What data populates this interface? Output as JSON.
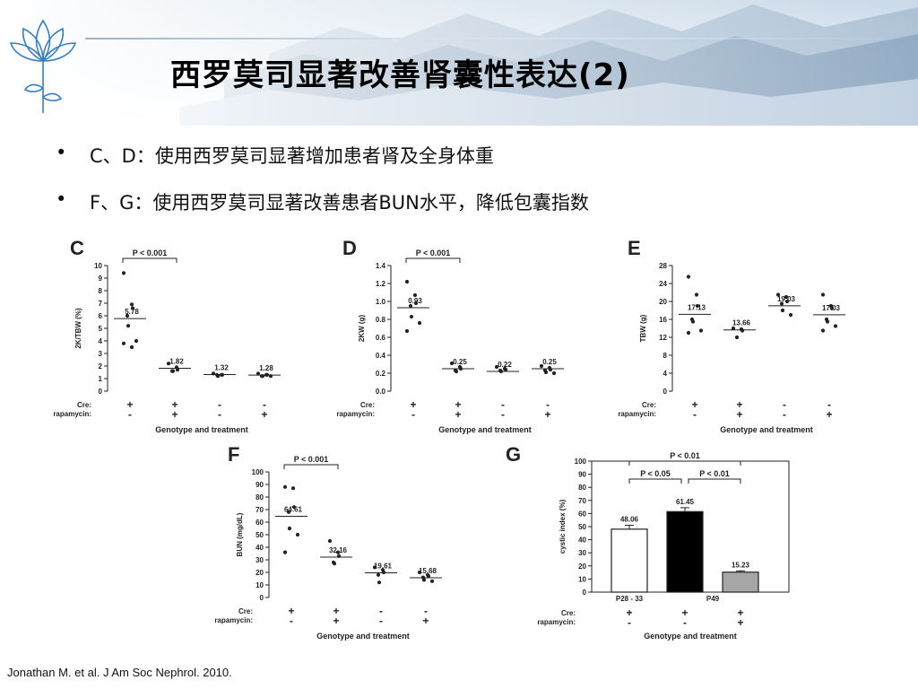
{
  "slide": {
    "title": "西罗莫司显著改善肾囊性表达(2)",
    "bullets": [
      "C、D：使用西罗莫司显著增加患者肾及全身体重",
      "F、G：使用西罗莫司显著改善患者BUN水平，降低包囊指数"
    ],
    "bullet_symbol": "•",
    "footer": "Jonathan M.  et  al. J Am Soc Nephrol. 2010."
  },
  "chart_data": [
    {
      "panel": "C",
      "type": "scatter",
      "ylabel": "2K/TBW (%)",
      "xlabel": "Genotype and treatment",
      "ylim": [
        0,
        10
      ],
      "yticks": [
        0,
        1,
        2,
        3,
        4,
        5,
        6,
        7,
        8,
        9,
        10
      ],
      "row_labels": [
        "Cre:",
        "rapamycin:"
      ],
      "groups": [
        {
          "cre": "+",
          "rapamycin": "-",
          "mean": 5.78,
          "mean_label": "5.78",
          "points": [
            9.4,
            6.9,
            6.6,
            6.0,
            5.2,
            4.0,
            3.8,
            3.5
          ]
        },
        {
          "cre": "+",
          "rapamycin": "+",
          "mean": 1.82,
          "mean_label": "1.82",
          "points": [
            2.2,
            1.9,
            1.7,
            1.6,
            1.6
          ]
        },
        {
          "cre": "-",
          "rapamycin": "-",
          "mean": 1.32,
          "mean_label": "1.32",
          "points": [
            1.4,
            1.3,
            1.3,
            1.3,
            1.2
          ]
        },
        {
          "cre": "-",
          "rapamycin": "+",
          "mean": 1.28,
          "mean_label": "1.28",
          "points": [
            1.4,
            1.3,
            1.3,
            1.2,
            1.2,
            1.2
          ]
        }
      ],
      "significance": [
        {
          "from": 0,
          "to": 1,
          "label": "P < 0.001"
        }
      ]
    },
    {
      "panel": "D",
      "type": "scatter",
      "ylabel": "2KW (g)",
      "xlabel": "Genotype and treatment",
      "ylim": [
        0,
        1.4
      ],
      "yticks": [
        0.0,
        0.2,
        0.4,
        0.6,
        0.8,
        1.0,
        1.2,
        1.4
      ],
      "row_labels": [
        "Cre:",
        "rapamycin:"
      ],
      "groups": [
        {
          "cre": "+",
          "rapamycin": "-",
          "mean": 0.93,
          "mean_label": "0.93",
          "points": [
            1.22,
            1.07,
            0.98,
            0.95,
            0.83,
            0.76,
            0.67
          ]
        },
        {
          "cre": "+",
          "rapamycin": "+",
          "mean": 0.25,
          "mean_label": "0.25",
          "points": [
            0.31,
            0.27,
            0.25,
            0.23,
            0.22
          ]
        },
        {
          "cre": "-",
          "rapamycin": "-",
          "mean": 0.22,
          "mean_label": "0.22",
          "points": [
            0.27,
            0.25,
            0.24,
            0.23,
            0.22
          ]
        },
        {
          "cre": "-",
          "rapamycin": "+",
          "mean": 0.25,
          "mean_label": "0.25",
          "points": [
            0.28,
            0.26,
            0.24,
            0.23,
            0.21,
            0.2
          ]
        }
      ],
      "significance": [
        {
          "from": 0,
          "to": 1,
          "label": "P < 0.001"
        }
      ]
    },
    {
      "panel": "E",
      "type": "scatter",
      "ylabel": "TBW (g)",
      "xlabel": "Genotype and treatment",
      "ylim": [
        0,
        28
      ],
      "yticks": [
        0,
        4,
        8,
        12,
        16,
        20,
        24,
        28
      ],
      "row_labels": [
        "Cre:",
        "rapamycin:"
      ],
      "groups": [
        {
          "cre": "+",
          "rapamycin": "-",
          "mean": 17.13,
          "mean_label": "17.13",
          "points": [
            25.5,
            21.5,
            19.0,
            16.0,
            15.5,
            13.5,
            13.0
          ]
        },
        {
          "cre": "+",
          "rapamycin": "+",
          "mean": 13.66,
          "mean_label": "13.66",
          "points": [
            14.0,
            13.8,
            13.5,
            12.0
          ]
        },
        {
          "cre": "-",
          "rapamycin": "-",
          "mean": 19.03,
          "mean_label": "19.03",
          "points": [
            21.5,
            21.0,
            20.0,
            19.5,
            18.0,
            17.0
          ]
        },
        {
          "cre": "-",
          "rapamycin": "+",
          "mean": 17.03,
          "mean_label": "17.03",
          "points": [
            21.5,
            19.0,
            18.5,
            16.0,
            15.5,
            14.5,
            13.5
          ]
        }
      ],
      "significance": []
    },
    {
      "panel": "F",
      "type": "scatter",
      "ylabel": "BUN (mg/dL)",
      "xlabel": "Genotype and treatment",
      "ylim": [
        0,
        100
      ],
      "yticks": [
        0,
        10,
        20,
        30,
        40,
        50,
        60,
        70,
        80,
        90,
        100
      ],
      "row_labels": [
        "Cre:",
        "rapamycin:"
      ],
      "groups": [
        {
          "cre": "+",
          "rapamycin": "-",
          "mean": 64.61,
          "mean_label": "64.61",
          "points": [
            88,
            87,
            72,
            68,
            55,
            50,
            36
          ]
        },
        {
          "cre": "+",
          "rapamycin": "+",
          "mean": 32.16,
          "mean_label": "32.16",
          "points": [
            45,
            36,
            33,
            28,
            27
          ]
        },
        {
          "cre": "-",
          "rapamycin": "-",
          "mean": 19.61,
          "mean_label": "19.61",
          "points": [
            24,
            22,
            20,
            18,
            12
          ]
        },
        {
          "cre": "-",
          "rapamycin": "+",
          "mean": 15.68,
          "mean_label": "15.68",
          "points": [
            20,
            18,
            17,
            16,
            14,
            13
          ]
        }
      ],
      "significance": [
        {
          "from": 0,
          "to": 1,
          "label": "P < 0.001"
        }
      ]
    },
    {
      "panel": "G",
      "type": "bar",
      "ylabel": "cystic index (%)",
      "xlabel": "Genotype and treatment",
      "ylim": [
        0,
        100
      ],
      "yticks": [
        0,
        10,
        20,
        30,
        40,
        50,
        60,
        70,
        80,
        90,
        100
      ],
      "row_labels": [
        "Cre:",
        "rapamycin:"
      ],
      "age_groups": [
        {
          "label": "P28 - 33",
          "bars": [
            0
          ]
        },
        {
          "label": "P49",
          "bars": [
            1,
            2
          ]
        }
      ],
      "bars": [
        {
          "cre": "+",
          "rapamycin": "-",
          "value": 48.06,
          "value_label": "48.06",
          "error": 3,
          "fill": "#ffffff"
        },
        {
          "cre": "+",
          "rapamycin": "-",
          "value": 61.45,
          "value_label": "61.45",
          "error": 3,
          "fill": "#000000"
        },
        {
          "cre": "+",
          "rapamycin": "+",
          "value": 15.23,
          "value_label": "15.23",
          "error": 1,
          "fill": "#a6a6a6"
        }
      ],
      "significance": [
        {
          "from": 0,
          "to": 2,
          "label": "P < 0.01"
        },
        {
          "from": 0,
          "to": 1,
          "label": "P < 0.05"
        },
        {
          "from": 1,
          "to": 2,
          "label": "P < 0.01"
        }
      ]
    }
  ]
}
